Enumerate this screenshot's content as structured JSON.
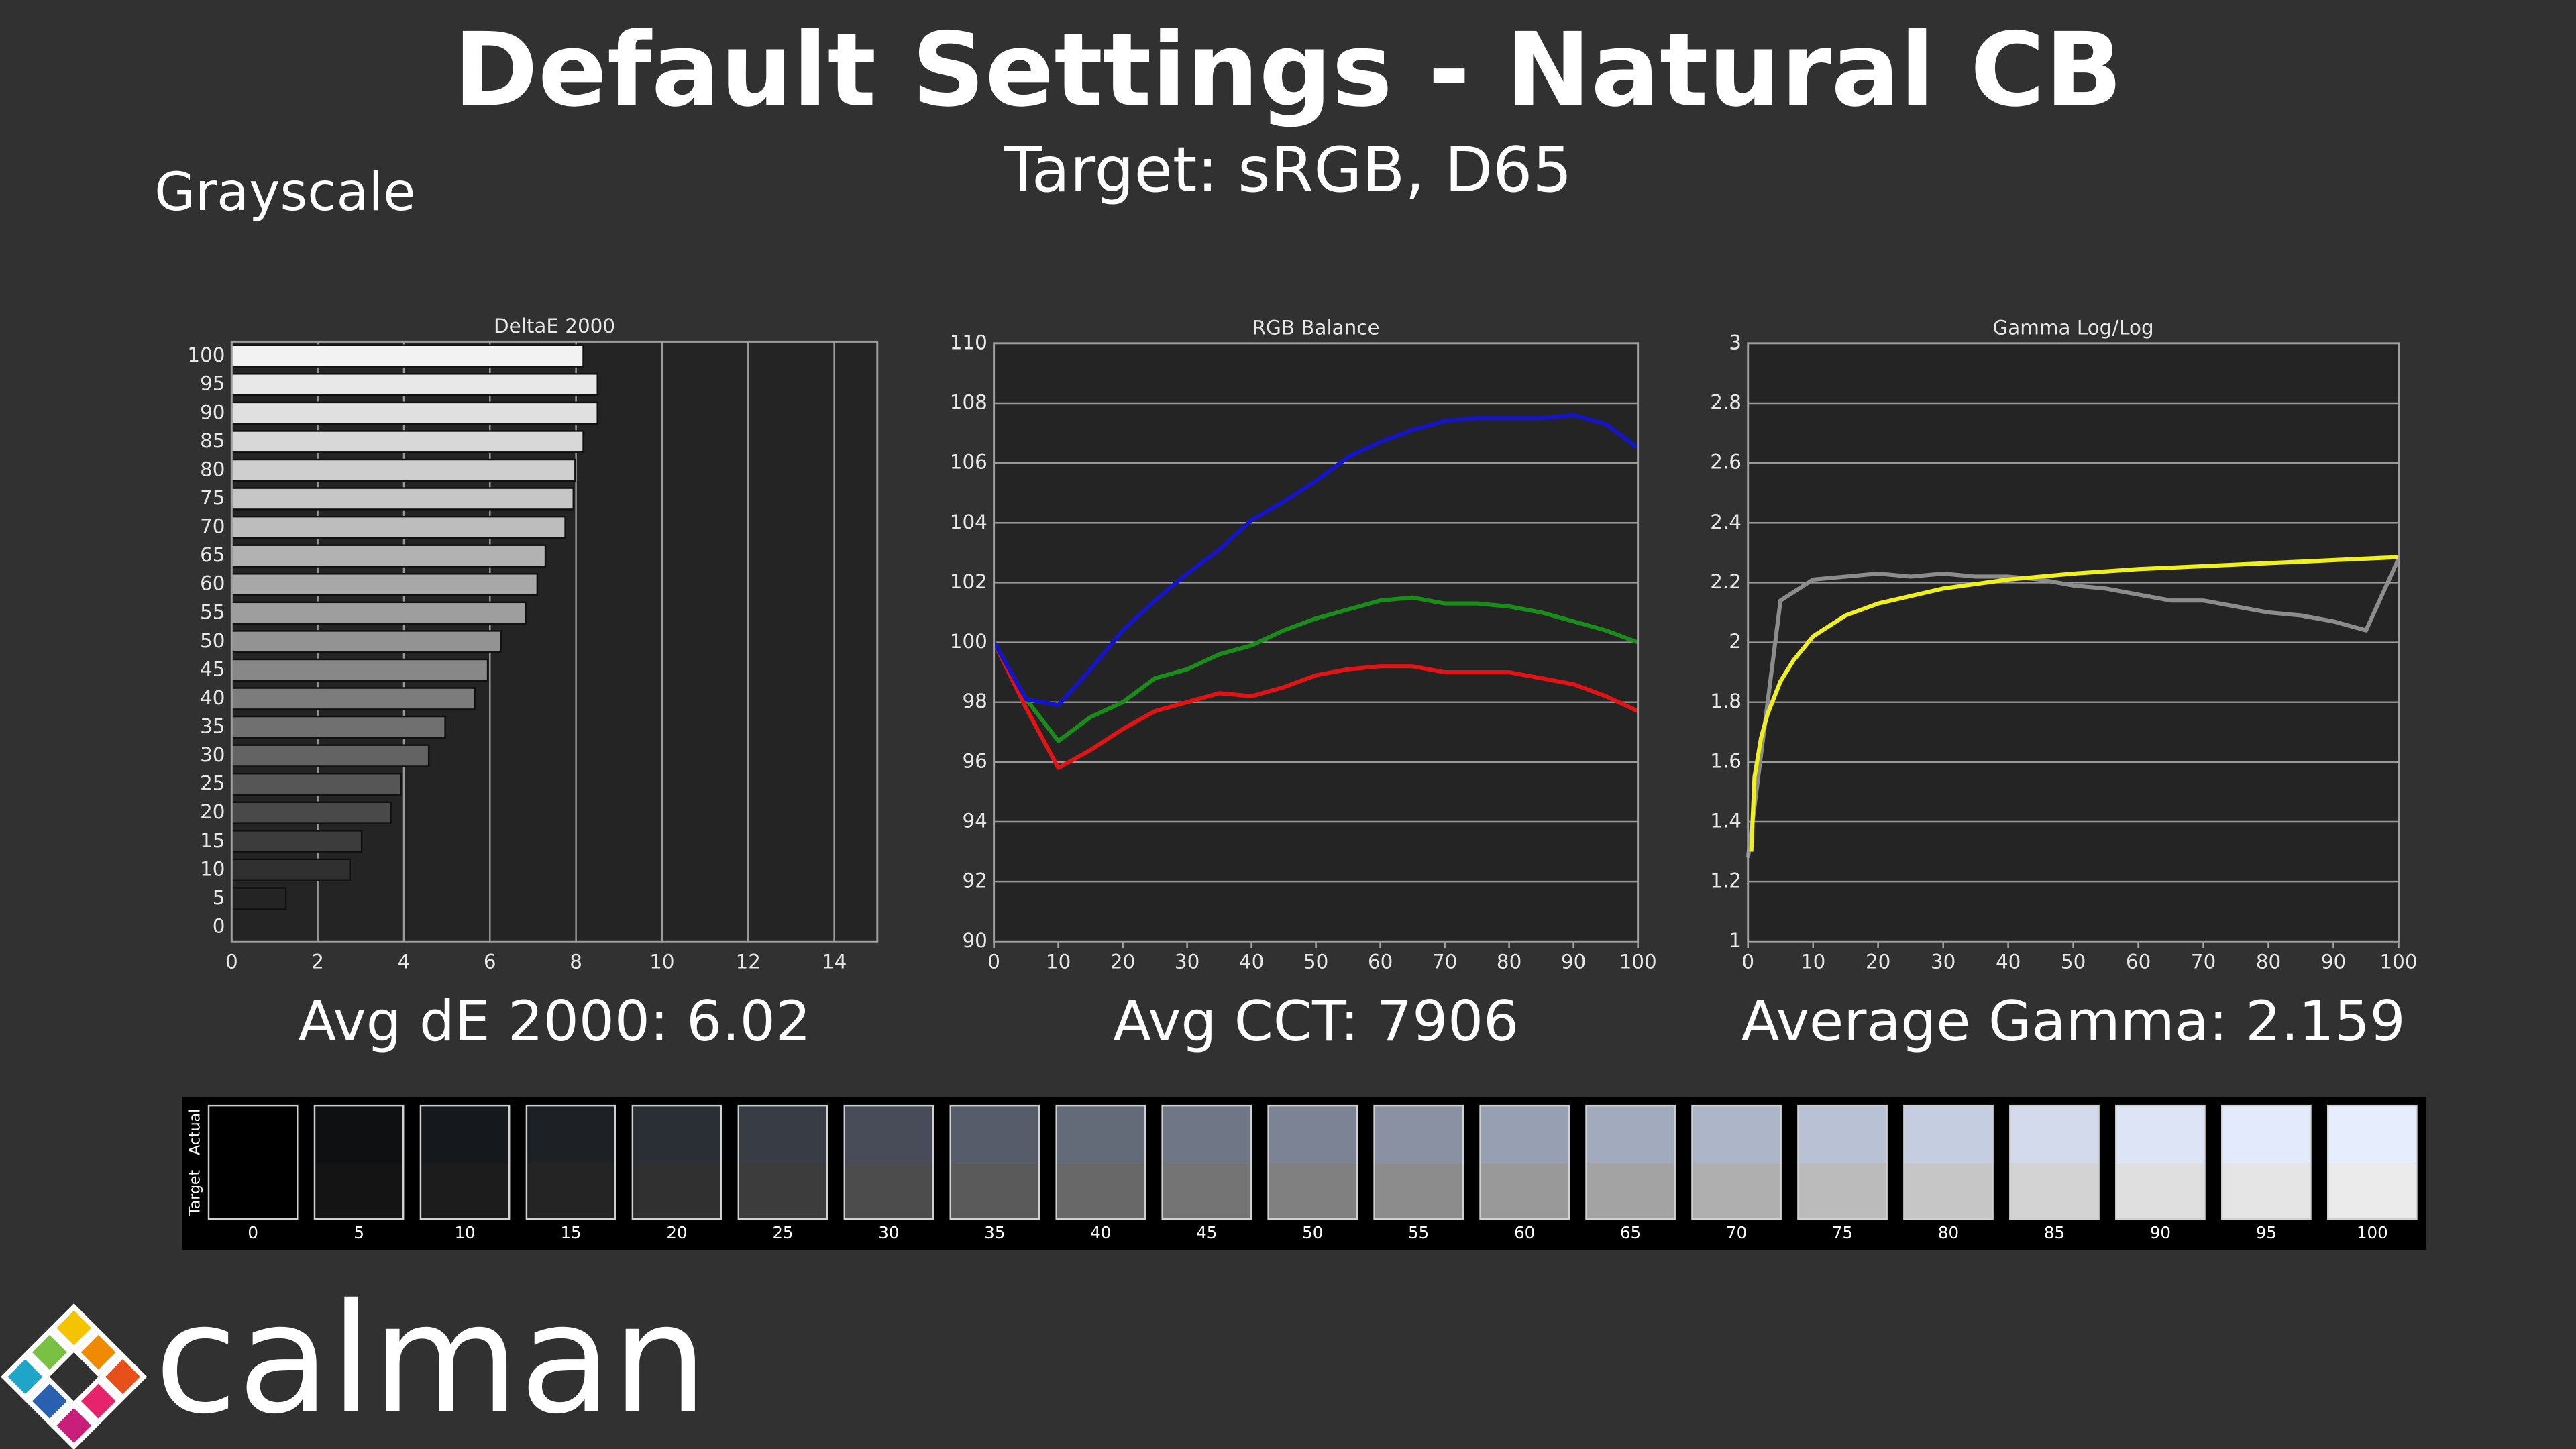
{
  "title": "Default Settings - Natural CB",
  "subtitle": "Target: sRGB, D65",
  "section": "Grayscale",
  "chart_data": [
    {
      "type": "bar",
      "title": "DeltaE 2000",
      "summary": "Avg dE 2000: 6.02",
      "categories": [
        "100",
        "95",
        "90",
        "85",
        "80",
        "75",
        "70",
        "65",
        "60",
        "55",
        "50",
        "45",
        "40",
        "35",
        "30",
        "25",
        "20",
        "15",
        "10",
        "5",
        "0"
      ],
      "values": [
        8.17,
        8.5,
        8.5,
        8.17,
        7.98,
        7.94,
        7.75,
        7.29,
        7.1,
        6.83,
        6.26,
        5.95,
        5.65,
        4.96,
        4.58,
        3.93,
        3.7,
        3.02,
        2.75,
        1.26,
        0
      ],
      "colors": [
        "#f2f2f2",
        "#e8e8e8",
        "#e0e0e0",
        "#d8d8d8",
        "#cfcfcf",
        "#c6c6c6",
        "#bdbdbd",
        "#b2b2b2",
        "#a8a8a8",
        "#9e9e9e",
        "#939393",
        "#888888",
        "#7c7c7c",
        "#707070",
        "#636363",
        "#565656",
        "#494949",
        "#3c3c3c",
        "#303030",
        "#242424",
        "#181818"
      ],
      "xlim": [
        0,
        15
      ],
      "xticks": [
        0,
        2,
        4,
        6,
        8,
        10,
        12,
        14
      ],
      "grid": true
    },
    {
      "type": "line",
      "title": "RGB Balance",
      "summary": "Avg CCT: 7906",
      "x": [
        0,
        5,
        10,
        15,
        20,
        25,
        30,
        35,
        40,
        45,
        50,
        55,
        60,
        65,
        70,
        75,
        80,
        85,
        90,
        95,
        100
      ],
      "series": [
        {
          "color": "#e01414",
          "values": [
            100,
            97.8,
            95.8,
            96.4,
            97.1,
            97.7,
            98.0,
            98.3,
            98.2,
            98.5,
            98.9,
            99.1,
            99.2,
            99.2,
            99.0,
            99.0,
            99.0,
            98.8,
            98.6,
            98.2,
            97.7
          ]
        },
        {
          "color": "#1a8c1a",
          "values": [
            100,
            98.1,
            96.7,
            97.5,
            98.0,
            98.8,
            99.1,
            99.6,
            99.9,
            100.4,
            100.8,
            101.1,
            101.4,
            101.5,
            101.3,
            101.3,
            101.2,
            101.0,
            100.7,
            100.4,
            100.0
          ]
        },
        {
          "color": "#1414c8",
          "values": [
            100,
            98.1,
            97.9,
            99.1,
            100.4,
            101.4,
            102.3,
            103.1,
            104.1,
            104.7,
            105.4,
            106.2,
            106.7,
            107.1,
            107.4,
            107.5,
            107.5,
            107.5,
            107.6,
            107.3,
            106.5
          ]
        }
      ],
      "xlim": [
        0,
        100
      ],
      "xticks": [
        0,
        10,
        20,
        30,
        40,
        50,
        60,
        70,
        80,
        90,
        100
      ],
      "ylim": [
        90,
        110
      ],
      "yticks": [
        90,
        92,
        94,
        96,
        98,
        100,
        102,
        104,
        106,
        108,
        110
      ],
      "grid": true
    },
    {
      "type": "line",
      "title": "Gamma Log/Log",
      "summary": "Average Gamma: 2.159",
      "x": [
        0,
        5,
        10,
        15,
        20,
        25,
        30,
        35,
        40,
        45,
        50,
        55,
        60,
        65,
        70,
        75,
        80,
        85,
        90,
        95,
        100
      ],
      "series": [
        {
          "color": "#8c8c8c",
          "values": [
            1.28,
            2.14,
            2.21,
            2.22,
            2.23,
            2.22,
            2.23,
            2.22,
            2.22,
            2.21,
            2.19,
            2.18,
            2.16,
            2.14,
            2.14,
            2.12,
            2.1,
            2.09,
            2.07,
            2.04,
            2.28
          ]
        },
        {
          "color": "#f0f020",
          "x": [
            0.5,
            1,
            2,
            3,
            5,
            7,
            10,
            15,
            20,
            30,
            40,
            50,
            60,
            70,
            80,
            90,
            100
          ],
          "values": [
            1.3,
            1.55,
            1.68,
            1.76,
            1.87,
            1.94,
            2.02,
            2.09,
            2.13,
            2.18,
            2.21,
            2.23,
            2.245,
            2.255,
            2.265,
            2.275,
            2.285
          ]
        }
      ],
      "xlim": [
        0,
        100
      ],
      "xticks": [
        0,
        10,
        20,
        30,
        40,
        50,
        60,
        70,
        80,
        90,
        100
      ],
      "ylim": [
        1,
        3
      ],
      "yticks": [
        1,
        1.2,
        1.4,
        1.6,
        1.8,
        2,
        2.2,
        2.4,
        2.6,
        2.8,
        3
      ],
      "grid": true
    }
  ],
  "swatches": {
    "row_labels": [
      "Actual",
      "Target"
    ],
    "labels": [
      "0",
      "5",
      "10",
      "15",
      "20",
      "25",
      "30",
      "35",
      "40",
      "45",
      "50",
      "55",
      "60",
      "65",
      "70",
      "75",
      "80",
      "85",
      "90",
      "95",
      "100"
    ],
    "actual": [
      "#000000",
      "#0e1012",
      "#15181c",
      "#1d2126",
      "#2a2e35",
      "#383c45",
      "#474c58",
      "#565c69",
      "#636a78",
      "#6f7686",
      "#7c8394",
      "#8a91a3",
      "#979fb2",
      "#a2aabe",
      "#adb5c9",
      "#b9c1d5",
      "#c5cde0",
      "#d2daec",
      "#dce4f6",
      "#e2eafb",
      "#e6edfd"
    ],
    "target": [
      "#000000",
      "#141414",
      "#1c1c1c",
      "#242424",
      "#303030",
      "#3c3c3c",
      "#4c4c4c",
      "#5a5a5a",
      "#686868",
      "#747474",
      "#808080",
      "#8c8c8c",
      "#999999",
      "#a3a3a3",
      "#afafaf",
      "#bbbbbb",
      "#c6c6c6",
      "#d3d3d3",
      "#dfdfdf",
      "#e5e5e5",
      "#ebebeb"
    ]
  },
  "logo": "calman"
}
